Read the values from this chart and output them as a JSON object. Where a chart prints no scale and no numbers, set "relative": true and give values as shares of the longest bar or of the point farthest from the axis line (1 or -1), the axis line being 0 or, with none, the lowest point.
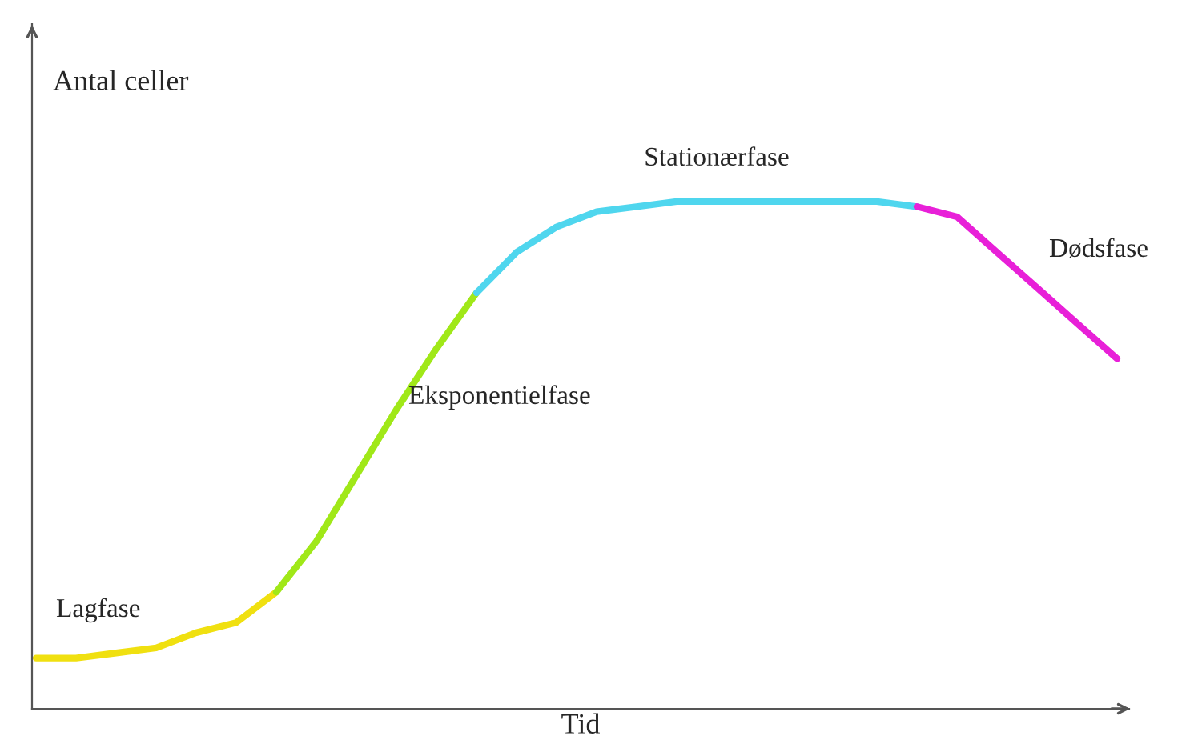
{
  "chart_data": {
    "type": "line",
    "relative": true,
    "xlabel": "Tid",
    "ylabel": "Antal celler",
    "legend": false,
    "marker": "none",
    "line_style": "solid",
    "categories": [
      null,
      null,
      null,
      null,
      null,
      null,
      null,
      null,
      null,
      null,
      null,
      null,
      null,
      null,
      null,
      null,
      null,
      null,
      null,
      null,
      null,
      null,
      null,
      null,
      null,
      null,
      null,
      null
    ],
    "series": [
      {
        "name": "Lagfase",
        "color": "#f0e010",
        "values": [
          0.1,
          0.1,
          0.11,
          0.12,
          0.15,
          0.17,
          0.23,
          null,
          null,
          null,
          null,
          null,
          null,
          null,
          null,
          null,
          null,
          null,
          null,
          null,
          null,
          null,
          null,
          null,
          null,
          null,
          null,
          null
        ]
      },
      {
        "name": "Eksponentielfase",
        "color": "#a0e818",
        "values": [
          null,
          null,
          null,
          null,
          null,
          null,
          0.23,
          0.33,
          0.46,
          0.59,
          0.71,
          0.82,
          null,
          null,
          null,
          null,
          null,
          null,
          null,
          null,
          null,
          null,
          null,
          null,
          null,
          null,
          null,
          null
        ]
      },
      {
        "name": "Stationærfase",
        "color": "#4fd6ee",
        "values": [
          null,
          null,
          null,
          null,
          null,
          null,
          null,
          null,
          null,
          null,
          null,
          0.82,
          0.9,
          0.95,
          0.98,
          0.99,
          1.0,
          1.0,
          1.0,
          1.0,
          1.0,
          1.0,
          0.99,
          null,
          null,
          null,
          null,
          null
        ]
      },
      {
        "name": "Dødsfase",
        "color": "#e820d8",
        "values": [
          null,
          null,
          null,
          null,
          null,
          null,
          null,
          null,
          null,
          null,
          null,
          null,
          null,
          null,
          null,
          null,
          null,
          null,
          null,
          null,
          null,
          null,
          0.99,
          0.97,
          0.9,
          0.83,
          0.76,
          0.69
        ]
      }
    ]
  }
}
